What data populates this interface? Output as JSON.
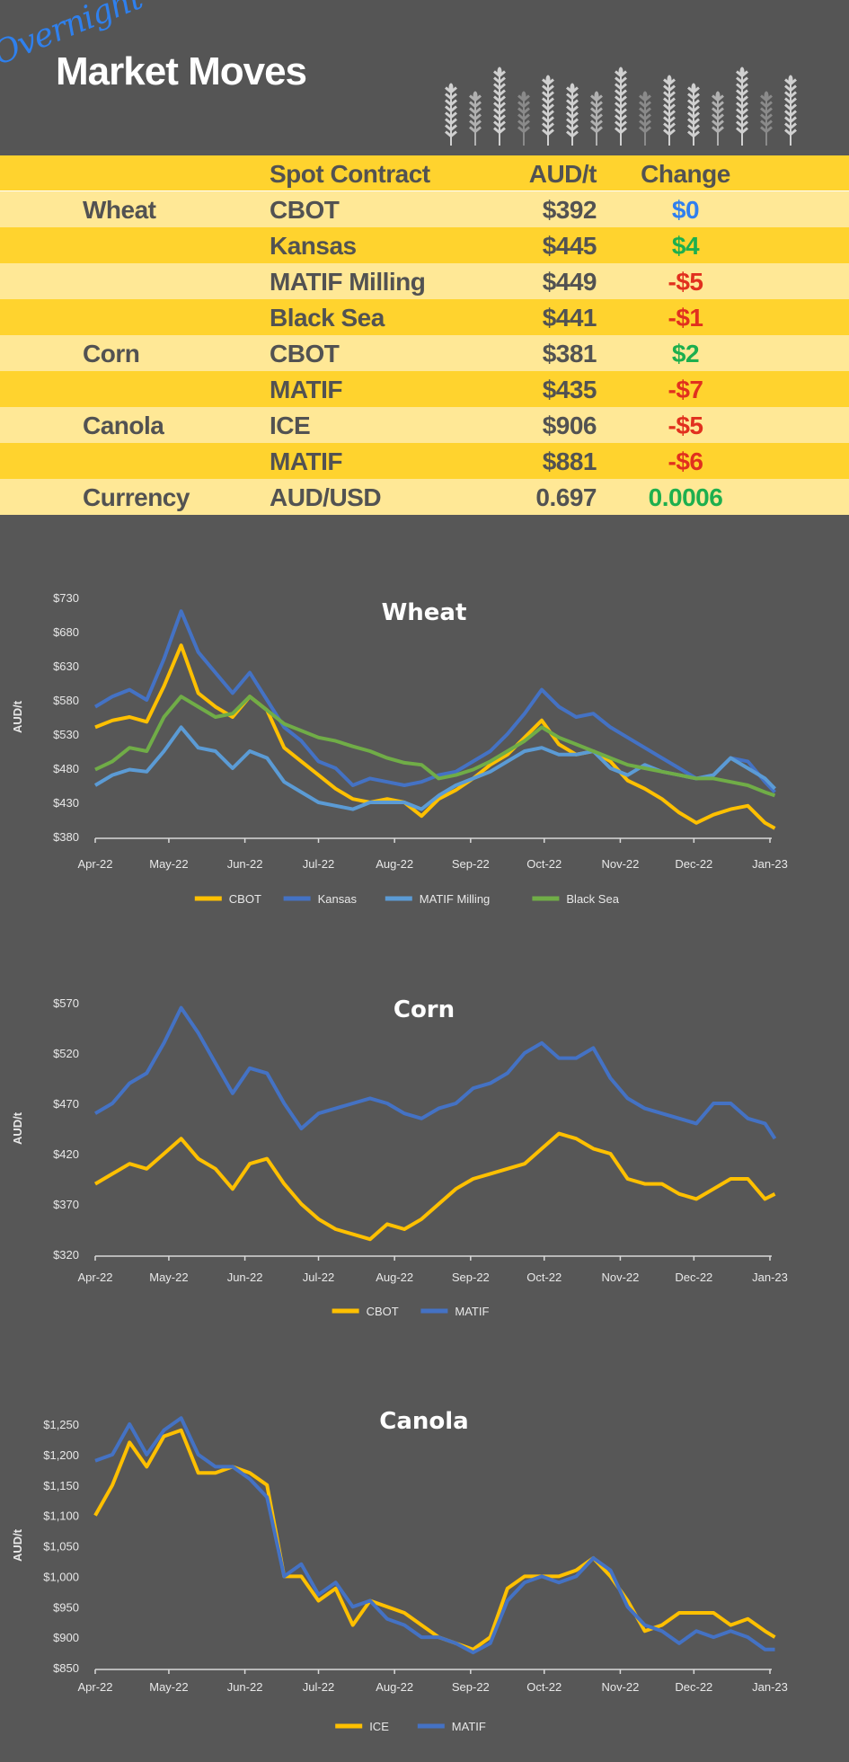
{
  "header": {
    "overline": "Overnight",
    "title": "Market Moves",
    "decoration_icon": "wheat-ears-icon"
  },
  "table": {
    "columns": [
      "",
      "Spot Contract",
      "AUD/t",
      "Change"
    ],
    "rows": [
      {
        "category": "Wheat",
        "contract": "CBOT",
        "price": "$392",
        "change": "$0",
        "change_color": "#2F7FEF"
      },
      {
        "category": "",
        "contract": "Kansas",
        "price": "$445",
        "change": "$4",
        "change_color": "#1DAF4E"
      },
      {
        "category": "",
        "contract": "MATIF Milling",
        "price": "$449",
        "change": "-$5",
        "change_color": "#E1301E"
      },
      {
        "category": "",
        "contract": "Black Sea",
        "price": "$441",
        "change": "-$1",
        "change_color": "#E1301E"
      },
      {
        "category": "Corn",
        "contract": "CBOT",
        "price": "$381",
        "change": "$2",
        "change_color": "#1DAF4E"
      },
      {
        "category": "",
        "contract": "MATIF",
        "price": "$435",
        "change": "-$7",
        "change_color": "#E1301E"
      },
      {
        "category": "Canola",
        "contract": "ICE",
        "price": "$906",
        "change": "-$5",
        "change_color": "#E1301E"
      },
      {
        "category": "",
        "contract": "MATIF",
        "price": "$881",
        "change": "-$6",
        "change_color": "#E1301E"
      },
      {
        "category": "Currency",
        "contract": "AUD/USD",
        "price": "0.697",
        "change": "0.0006",
        "change_color": "#1DAF4E"
      }
    ]
  },
  "chart_data": [
    {
      "type": "line",
      "title": "Wheat",
      "ylabel": "AUD/t",
      "ylim": [
        380,
        730
      ],
      "yticks": [
        "$380",
        "$430",
        "$480",
        "$530",
        "$580",
        "$630",
        "$680",
        "$730"
      ],
      "xticks": [
        "Apr-22",
        "May-22",
        "Jun-22",
        "Jul-22",
        "Aug-22",
        "Sep-22",
        "Oct-22",
        "Nov-22",
        "Dec-22",
        "Jan-23"
      ],
      "legend": "bottom",
      "series": [
        {
          "name": "CBOT",
          "color": "#FFC000",
          "values": [
            540,
            550,
            555,
            548,
            600,
            660,
            590,
            570,
            555,
            585,
            565,
            510,
            490,
            470,
            450,
            435,
            430,
            435,
            430,
            410,
            435,
            448,
            465,
            485,
            500,
            525,
            550,
            515,
            500,
            505,
            490,
            462,
            450,
            435,
            415,
            400,
            412,
            420,
            425,
            400,
            392
          ]
        },
        {
          "name": "Kansas",
          "color": "#4472C4",
          "values": [
            570,
            585,
            595,
            580,
            640,
            710,
            650,
            620,
            590,
            620,
            580,
            540,
            520,
            490,
            480,
            455,
            465,
            460,
            455,
            460,
            470,
            475,
            490,
            505,
            530,
            560,
            595,
            570,
            555,
            560,
            540,
            525,
            510,
            495,
            480,
            465,
            470,
            495,
            490,
            460,
            445
          ]
        },
        {
          "name": "MATIF Milling",
          "color": "#5B9BD5",
          "values": [
            455,
            470,
            478,
            475,
            505,
            540,
            510,
            505,
            480,
            505,
            495,
            460,
            445,
            430,
            425,
            420,
            430,
            430,
            430,
            420,
            440,
            455,
            465,
            475,
            490,
            505,
            510,
            500,
            500,
            505,
            480,
            470,
            485,
            475,
            470,
            465,
            470,
            495,
            480,
            465,
            450
          ]
        },
        {
          "name": "Black Sea",
          "color": "#70AD47",
          "values": [
            478,
            490,
            510,
            505,
            555,
            585,
            570,
            555,
            560,
            585,
            565,
            545,
            535,
            525,
            520,
            512,
            505,
            495,
            488,
            485,
            465,
            470,
            478,
            490,
            505,
            520,
            540,
            525,
            515,
            505,
            495,
            485,
            480,
            475,
            470,
            465,
            465,
            460,
            455,
            445,
            440
          ]
        }
      ]
    },
    {
      "type": "line",
      "title": "Corn",
      "ylabel": "AUD/t",
      "ylim": [
        320,
        570
      ],
      "yticks": [
        "$320",
        "$370",
        "$420",
        "$470",
        "$520",
        "$570"
      ],
      "xticks": [
        "Apr-22",
        "May-22",
        "Jun-22",
        "Jul-22",
        "Aug-22",
        "Sep-22",
        "Oct-22",
        "Nov-22",
        "Dec-22",
        "Jan-23"
      ],
      "legend": "bottom",
      "series": [
        {
          "name": "CBOT",
          "color": "#FFC000",
          "values": [
            390,
            400,
            410,
            405,
            420,
            435,
            415,
            405,
            385,
            410,
            415,
            390,
            370,
            355,
            345,
            340,
            335,
            350,
            345,
            355,
            370,
            385,
            395,
            400,
            405,
            410,
            425,
            440,
            435,
            425,
            420,
            395,
            390,
            390,
            380,
            375,
            385,
            395,
            395,
            375,
            380
          ]
        },
        {
          "name": "MATIF",
          "color": "#4472C4",
          "values": [
            460,
            470,
            490,
            500,
            530,
            565,
            540,
            510,
            480,
            505,
            500,
            470,
            445,
            460,
            465,
            470,
            475,
            470,
            460,
            455,
            465,
            470,
            485,
            490,
            500,
            520,
            530,
            515,
            515,
            525,
            495,
            475,
            465,
            460,
            455,
            450,
            470,
            470,
            455,
            450,
            435
          ]
        }
      ]
    },
    {
      "type": "line",
      "title": "Canola",
      "ylabel": "AUD/t",
      "ylim": [
        850,
        1250
      ],
      "yticks": [
        "$850",
        "$900",
        "$950",
        "$1,000",
        "$1,050",
        "$1,100",
        "$1,150",
        "$1,200",
        "$1,250"
      ],
      "xticks": [
        "Apr-22",
        "May-22",
        "Jun-22",
        "Jul-22",
        "Aug-22",
        "Sep-22",
        "Oct-22",
        "Nov-22",
        "Dec-22",
        "Jan-23"
      ],
      "legend": "bottom",
      "series": [
        {
          "name": "ICE",
          "color": "#FFC000",
          "values": [
            1100,
            1150,
            1220,
            1180,
            1230,
            1240,
            1170,
            1170,
            1180,
            1170,
            1150,
            1000,
            1000,
            960,
            980,
            920,
            960,
            950,
            940,
            920,
            900,
            890,
            880,
            900,
            980,
            1000,
            1000,
            1000,
            1010,
            1030,
            1000,
            960,
            910,
            920,
            940,
            940,
            940,
            920,
            930,
            910,
            900
          ]
        },
        {
          "name": "MATIF",
          "color": "#4472C4",
          "values": [
            1190,
            1200,
            1250,
            1200,
            1240,
            1260,
            1200,
            1180,
            1180,
            1160,
            1130,
            1000,
            1020,
            970,
            990,
            950,
            960,
            930,
            920,
            900,
            900,
            890,
            875,
            890,
            960,
            990,
            1000,
            990,
            1000,
            1030,
            1010,
            950,
            920,
            910,
            890,
            910,
            900,
            910,
            900,
            880,
            880
          ]
        }
      ]
    }
  ]
}
